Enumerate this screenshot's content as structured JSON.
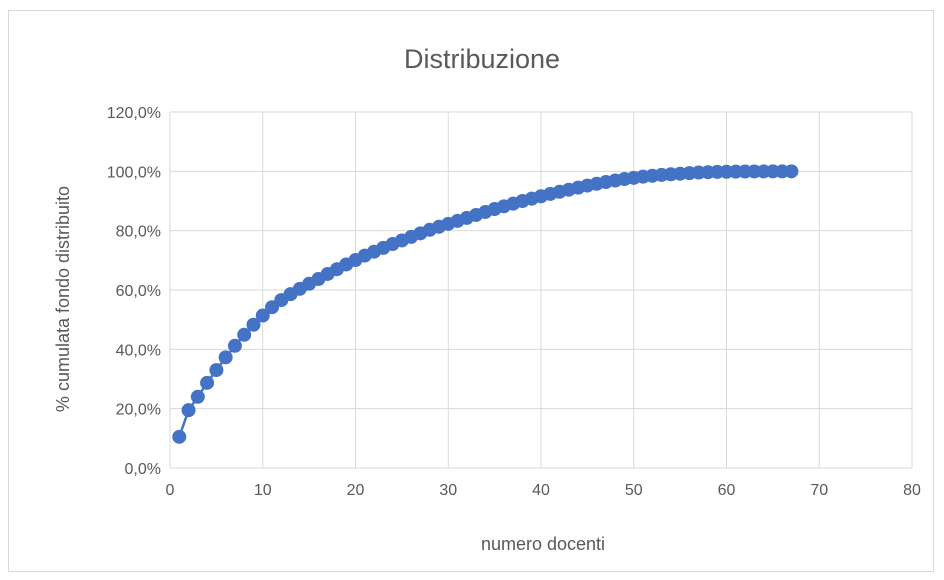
{
  "chart_data": {
    "type": "scatter",
    "title": "Distribuzione",
    "xlabel": "numero docenti",
    "ylabel": "% cumulata fondo distribuito",
    "xlim": [
      0,
      80
    ],
    "ylim": [
      0,
      120
    ],
    "x_ticks": [
      "0",
      "10",
      "20",
      "30",
      "40",
      "50",
      "60",
      "70",
      "80"
    ],
    "y_ticks": [
      "0,0%",
      "20,0%",
      "40,0%",
      "60,0%",
      "80,0%",
      "100,0%",
      "120,0%"
    ],
    "grid": true,
    "legend": "none",
    "series": [
      {
        "color": "#4472c4",
        "markers": true,
        "line": true,
        "x": [
          1,
          2,
          3,
          4,
          5,
          6,
          7,
          8,
          9,
          10,
          11,
          12,
          13,
          14,
          15,
          16,
          17,
          18,
          19,
          20,
          21,
          22,
          23,
          24,
          25,
          26,
          27,
          28,
          29,
          30,
          31,
          32,
          33,
          34,
          35,
          36,
          37,
          38,
          39,
          40,
          41,
          42,
          43,
          44,
          45,
          46,
          47,
          48,
          49,
          50,
          51,
          52,
          53,
          54,
          55,
          56,
          57,
          58,
          59,
          60,
          61,
          62,
          63,
          64,
          65,
          66,
          67
        ],
        "y": [
          10.5,
          19.5,
          24.0,
          28.7,
          33.0,
          37.3,
          41.2,
          44.9,
          48.3,
          51.4,
          54.2,
          56.6,
          58.6,
          60.4,
          62.1,
          63.7,
          65.4,
          67.0,
          68.6,
          70.1,
          71.6,
          72.9,
          74.2,
          75.5,
          76.7,
          77.9,
          79.1,
          80.3,
          81.3,
          82.3,
          83.3,
          84.3,
          85.3,
          86.3,
          87.3,
          88.2,
          89.1,
          90.0,
          90.8,
          91.6,
          92.4,
          93.1,
          93.8,
          94.5,
          95.2,
          95.8,
          96.4,
          96.9,
          97.4,
          97.8,
          98.2,
          98.5,
          98.8,
          99.0,
          99.2,
          99.4,
          99.6,
          99.7,
          99.8,
          99.85,
          99.9,
          99.93,
          99.95,
          99.97,
          99.98,
          99.99,
          100.0
        ]
      }
    ]
  }
}
